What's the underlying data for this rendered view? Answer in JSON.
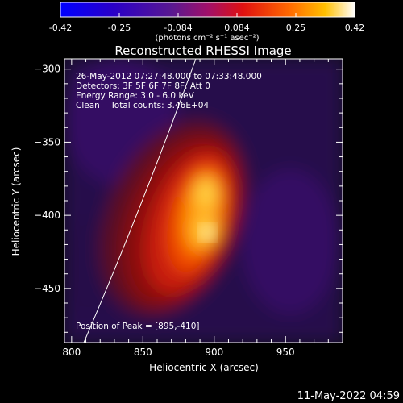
{
  "colorbar": {
    "ticks": [
      "-0.42",
      "-0.25",
      "-0.084",
      "0.084",
      "0.25",
      "0.42"
    ],
    "unit_label": "(photons cm⁻² s⁻¹ asec⁻²)"
  },
  "chart_data": {
    "type": "heatmap",
    "title": "Reconstructed RHESSI Image",
    "xlabel": "Heliocentric X (arcsec)",
    "ylabel": "Heliocentric Y (arcsec)",
    "xlim": [
      795,
      990
    ],
    "ylim": [
      -487,
      -293
    ],
    "x_ticks": [
      800,
      850,
      900,
      950
    ],
    "y_ticks": [
      -300,
      -350,
      -400,
      -450
    ],
    "color_range": [
      -0.42,
      0.42
    ],
    "peak": {
      "x": 895,
      "y": -410
    },
    "info_lines": [
      "26-May-2012 07:27:48.000 to 07:33:48.000",
      "Detectors: 3F 5F 6F 7F 8F, Att 0",
      "Energy Range: 3.0 - 6.0 keV",
      "Clean    Total counts: 3.46E+04"
    ],
    "peak_label": "Position of Peak = [895,-410]"
  },
  "footer": {
    "timestamp": "11-May-2022 04:59"
  }
}
